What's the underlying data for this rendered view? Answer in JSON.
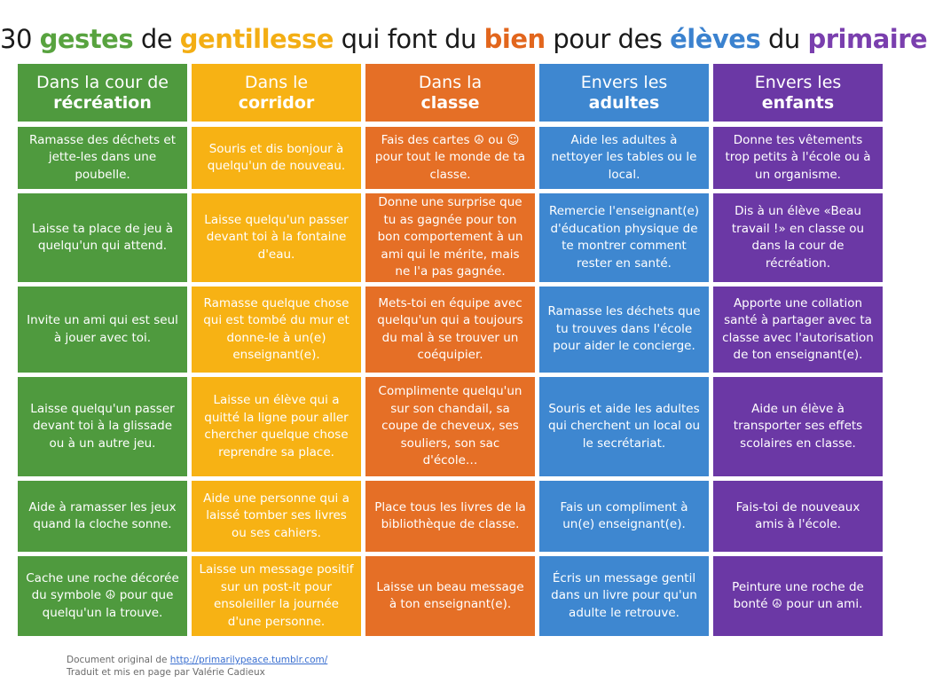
{
  "title": {
    "w1": "30",
    "w2": "gestes",
    "w3": "de",
    "w4": "gentillesse",
    "w5": "qui font du",
    "w6": "bien",
    "w7": "pour des",
    "w8": "élèves",
    "w9": "du",
    "w10": "primaire"
  },
  "colors": {
    "green": "#4f9a3e",
    "yellow": "#f7b214",
    "orange": "#e56f26",
    "blue": "#3e87d0",
    "purple": "#6b38a5",
    "title_green": "#58a33f",
    "title_yellow": "#f3ae14",
    "title_orange": "#e2661d",
    "title_blue": "#3b82cf",
    "title_purple": "#7a3fae"
  },
  "columns": [
    {
      "header_line1": "Dans la cour de",
      "header_line2": "récréation",
      "cells": [
        "Ramasse des déchets et jette-les dans une poubelle.",
        "Laisse ta place de jeu à quelqu'un qui attend.",
        "Invite un ami qui est seul à jouer avec toi.",
        "Laisse quelqu'un passer devant toi à la glissade ou à un autre jeu.",
        "Aide à ramasser les jeux quand la cloche sonne.",
        "Cache une roche décorée du symbole ☮ pour que quelqu'un la trouve."
      ]
    },
    {
      "header_line1": "Dans le",
      "header_line2": "corridor",
      "cells": [
        "Souris et dis bonjour à quelqu'un de nouveau.",
        "Laisse quelqu'un passer devant toi à la fontaine d'eau.",
        "Ramasse quelque chose qui est tombé du mur et donne-le à un(e) enseignant(e).",
        "Laisse un élève qui a quitté la ligne pour aller chercher quelque chose reprendre sa place.",
        "Aide une personne qui a laissé tomber ses livres ou ses cahiers.",
        "Laisse un message positif sur un post-it pour ensoleiller la journée d'une personne."
      ]
    },
    {
      "header_line1": "Dans la",
      "header_line2": "classe",
      "cells": [
        "Fais des cartes ☮ ou ☺ pour tout le monde de ta classe.",
        "Donne une surprise que tu as gagnée pour ton bon comportement à un ami qui le mérite, mais ne l'a pas gagnée.",
        "Mets-toi en équipe avec quelqu'un qui a toujours du mal à se trouver un coéquipier.",
        "Complimente quelqu'un sur son chandail, sa coupe de cheveux, ses souliers, son sac d'école…",
        "Place tous les livres de la bibliothèque de classe.",
        "Laisse un beau message à ton enseignant(e)."
      ]
    },
    {
      "header_line1": "Envers les",
      "header_line2": "adultes",
      "cells": [
        "Aide les adultes à nettoyer les tables ou le local.",
        "Remercie l'enseignant(e) d'éducation physique de te montrer comment rester en santé.",
        "Ramasse les déchets que tu trouves dans l'école pour aider le concierge.",
        "Souris et aide les adultes qui cherchent un local ou le secrétariat.",
        "Fais un compliment à un(e) enseignant(e).",
        "Écris un message gentil dans un livre pour qu'un adulte le retrouve."
      ]
    },
    {
      "header_line1": "Envers les",
      "header_line2": "enfants",
      "cells": [
        "Donne tes vêtements trop petits à l'école ou à un organisme.",
        "Dis à un élève «Beau travail !» en classe ou dans la cour de récréation.",
        "Apporte une collation santé à partager avec ta classe avec l'autorisation de ton enseignant(e).",
        "Aide un élève à transporter ses effets scolaires en classe.",
        "Fais-toi de nouveaux amis à l'école.",
        "Peinture une roche de bonté ☮ pour un ami."
      ]
    }
  ],
  "footer": {
    "line1_prefix": "Document original de ",
    "link": "http://primarilypeace.tumblr.com/",
    "line2": "Traduit et mis en page par Valérie Cadieux"
  }
}
